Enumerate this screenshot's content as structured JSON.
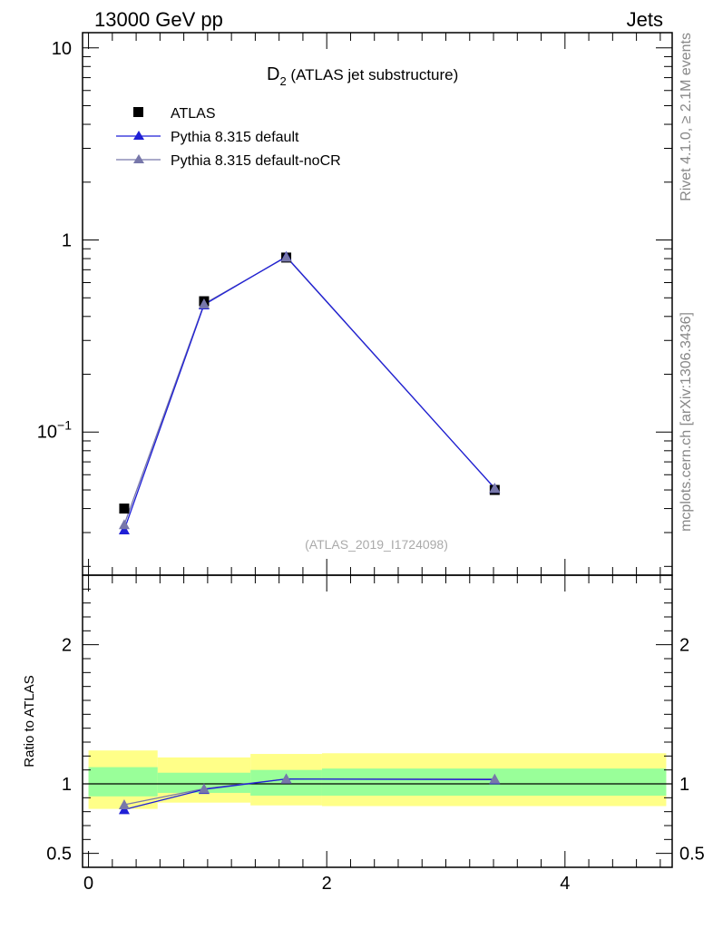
{
  "header": {
    "left": "13000 GeV pp",
    "right": "Jets"
  },
  "side_text": {
    "top": "Rivet 4.1.0, ≥ 2.1M events",
    "bottom": "mcplots.cern.ch [arXiv:1306.3436]"
  },
  "colors": {
    "data": "#000000",
    "pythia_default": "#1f1fd6",
    "pythia_nocr": "#7777aa",
    "band_inner": "#99ff99",
    "band_outer": "#ffff88"
  },
  "chart_data": [
    {
      "type": "line",
      "title": "D",
      "title_sub": "2",
      "title_suffix": " (ATLAS jet substructure)",
      "watermark": "(ATLAS_2019_I1724098)",
      "yscale": "log",
      "ylim": [
        0.018,
        12
      ],
      "xlim": [
        -0.05,
        4.9
      ],
      "y_tick_labels": [
        "10",
        "1",
        "10−1"
      ],
      "legend_position": "top-left",
      "series": [
        {
          "name": "ATLAS",
          "marker": "square",
          "x": [
            0.3,
            0.97,
            1.66,
            3.41
          ],
          "y": [
            0.04,
            0.48,
            0.81,
            0.05
          ]
        },
        {
          "name": "Pythia 8.315 default",
          "marker": "triangle",
          "x": [
            0.3,
            0.97,
            1.66,
            3.41
          ],
          "y": [
            0.031,
            0.46,
            0.82,
            0.051
          ]
        },
        {
          "name": "Pythia 8.315 default-noCR",
          "marker": "triangle",
          "x": [
            0.3,
            0.97,
            1.66,
            3.41
          ],
          "y": [
            0.033,
            0.465,
            0.815,
            0.051
          ]
        }
      ]
    },
    {
      "type": "line",
      "ylabel": "Ratio to ATLAS",
      "ylim": [
        0.4,
        2.5
      ],
      "xlim": [
        -0.05,
        4.9
      ],
      "x_ticks": [
        0,
        2,
        4
      ],
      "x_tick_labels": [
        "0",
        "2",
        "4"
      ],
      "y_ticks": [
        0.5,
        1,
        2
      ],
      "y_tick_labels": [
        "0.5",
        "1",
        "2"
      ],
      "bands": [
        {
          "x0": 0.0,
          "x1": 0.58,
          "inner": [
            0.91,
            1.12
          ],
          "outer": [
            0.82,
            1.24
          ]
        },
        {
          "x0": 0.58,
          "x1": 1.36,
          "inner": [
            0.935,
            1.08
          ],
          "outer": [
            0.865,
            1.19
          ]
        },
        {
          "x0": 1.36,
          "x1": 1.96,
          "inner": [
            0.915,
            1.1
          ],
          "outer": [
            0.845,
            1.215
          ]
        },
        {
          "x0": 1.96,
          "x1": 4.85,
          "inner": [
            0.915,
            1.11
          ],
          "outer": [
            0.84,
            1.22
          ]
        }
      ],
      "series": [
        {
          "name": "Pythia 8.315 default",
          "x": [
            0.3,
            0.97,
            1.66,
            3.41
          ],
          "y": [
            0.815,
            0.96,
            1.035,
            1.03
          ]
        },
        {
          "name": "Pythia 8.315 default-noCR",
          "x": [
            0.3,
            0.97,
            1.66,
            3.41
          ],
          "y": [
            0.85,
            0.965,
            1.035,
            1.035
          ]
        }
      ]
    }
  ]
}
